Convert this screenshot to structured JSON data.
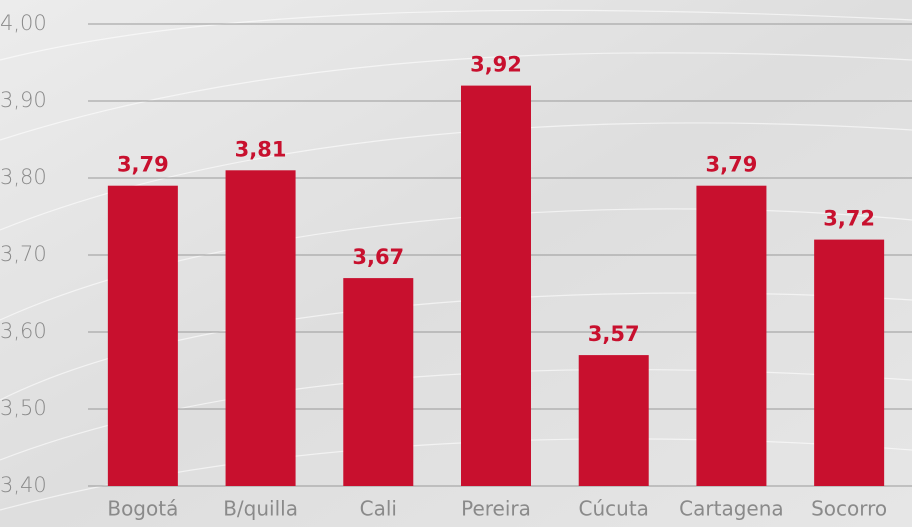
{
  "chart_data": {
    "type": "bar",
    "categories": [
      "Bogotá",
      "B/quilla",
      "Cali",
      "Pereira",
      "Cúcuta",
      "Cartagena",
      "Socorro"
    ],
    "values": [
      3.79,
      3.81,
      3.67,
      3.92,
      3.57,
      3.79,
      3.72
    ],
    "value_labels": [
      "3,79",
      "3,81",
      "3,67",
      "3,92",
      "3,57",
      "3,79",
      "3,72"
    ],
    "color": "#c8102e",
    "ylim": [
      3.4,
      4.0
    ],
    "yticks": [
      {
        "value": 3.4,
        "label": "3,40"
      },
      {
        "value": 3.5,
        "label": "3,50"
      },
      {
        "value": 3.6,
        "label": "3,60"
      },
      {
        "value": 3.7,
        "label": "3,70"
      },
      {
        "value": 3.8,
        "label": "3,80"
      },
      {
        "value": 3.9,
        "label": "3,90"
      },
      {
        "value": 4.0,
        "label": "4,00"
      }
    ],
    "grid": true
  }
}
